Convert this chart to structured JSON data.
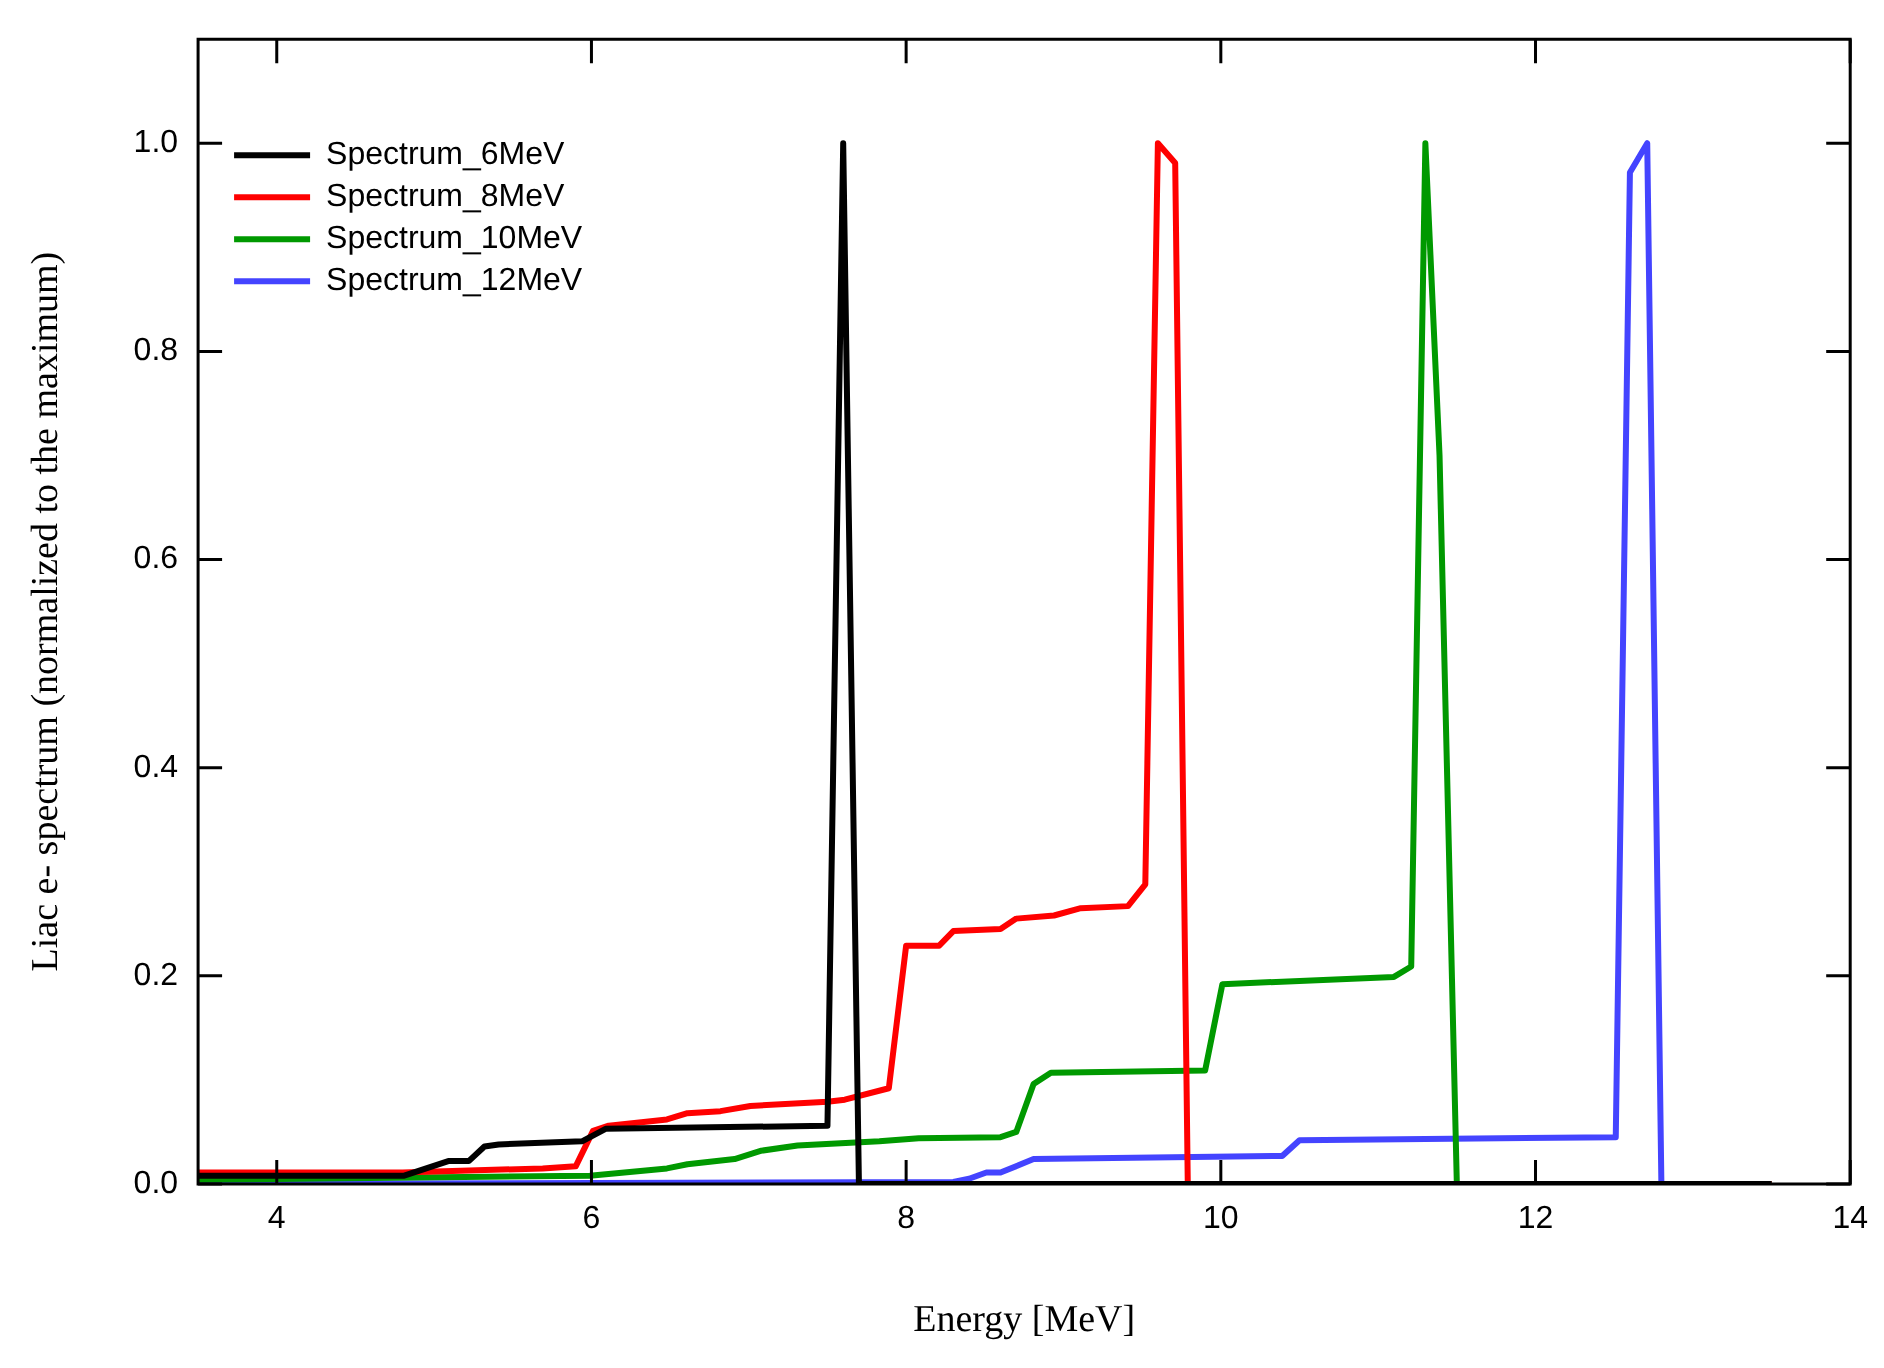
{
  "chart_data": {
    "type": "line",
    "xlabel": "Energy [MeV]",
    "ylabel": "Liac e- spectrum (normalized to the maximum)",
    "xlim": [
      3.5,
      14
    ],
    "xticks": [
      4,
      6,
      8,
      10,
      12,
      14
    ],
    "ylim": [
      0,
      1.1
    ],
    "yticks": [
      {
        "value": 0,
        "label": "0.0"
      },
      0.2,
      0.4,
      0.6,
      0.8,
      {
        "value": 1,
        "label": "1.0"
      }
    ],
    "grid": false,
    "legend": "top left",
    "line_style": "solid",
    "marker": "none",
    "series": [
      {
        "name": "Spectrum_6MeV",
        "color": "#000000",
        "x": [
          3.5,
          4.81,
          5.09,
          5.22,
          5.32,
          5.41,
          5.94,
          6.09,
          7.5,
          7.6,
          7.7,
          13.5
        ],
        "values": [
          0.008,
          0.008,
          0.022,
          0.022,
          0.036,
          0.038,
          0.041,
          0.053,
          0.056,
          1.0,
          0.0,
          0.0
        ]
      },
      {
        "name": "Spectrum_8MeV",
        "color": "#ff0000",
        "x": [
          3.5,
          4.8,
          5.69,
          5.9,
          6.01,
          6.11,
          6.48,
          6.61,
          6.82,
          7.01,
          7.5,
          7.61,
          7.89,
          8.0,
          8.21,
          8.3,
          8.6,
          8.7,
          8.94,
          9.11,
          9.41,
          9.52,
          9.6,
          9.71,
          9.79,
          13.5
        ],
        "values": [
          0.011,
          0.011,
          0.015,
          0.017,
          0.051,
          0.056,
          0.062,
          0.068,
          0.07,
          0.075,
          0.079,
          0.081,
          0.092,
          0.229,
          0.229,
          0.243,
          0.245,
          0.255,
          0.258,
          0.265,
          0.267,
          0.288,
          1.0,
          0.981,
          0.0,
          0.0
        ]
      },
      {
        "name": "Spectrum_10MeV",
        "color": "#009900",
        "x": [
          3.5,
          5.99,
          6.48,
          6.61,
          6.91,
          7.08,
          7.31,
          7.83,
          8.08,
          8.6,
          8.7,
          8.81,
          8.92,
          9.9,
          10.01,
          11.1,
          11.21,
          11.3,
          11.39,
          11.5,
          13.5
        ],
        "values": [
          0.004,
          0.008,
          0.015,
          0.019,
          0.024,
          0.032,
          0.037,
          0.041,
          0.044,
          0.045,
          0.05,
          0.096,
          0.107,
          0.109,
          0.192,
          0.199,
          0.209,
          1.0,
          0.7,
          0.0,
          0.0
        ]
      },
      {
        "name": "Spectrum_12MeV",
        "color": "#4444ff",
        "x": [
          3.5,
          8.3,
          8.4,
          8.51,
          8.6,
          8.81,
          10.39,
          10.5,
          12.51,
          12.6,
          12.71,
          12.8,
          13.5
        ],
        "values": [
          0.0,
          0.002,
          0.005,
          0.011,
          0.011,
          0.024,
          0.027,
          0.042,
          0.045,
          0.972,
          1.0,
          0.0,
          0.0
        ]
      }
    ]
  }
}
